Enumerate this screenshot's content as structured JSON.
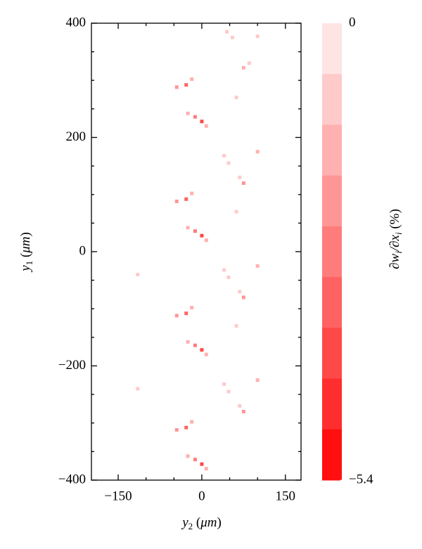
{
  "chart_data": {
    "type": "heatmap",
    "xlabel": [
      "y",
      "2",
      " (",
      "μm",
      ")"
    ],
    "ylabel": [
      "y",
      "1",
      " (",
      "μm",
      ")"
    ],
    "colorbar_label": [
      "∂w",
      "i",
      "/∂x",
      "i",
      " (%)"
    ],
    "xlim": [
      -198,
      178
    ],
    "ylim": [
      -400,
      400
    ],
    "xticks": [
      {
        "value": -150,
        "label": "−150"
      },
      0,
      150
    ],
    "yticks": [
      {
        "value": -400,
        "label": "−400"
      },
      {
        "value": -200,
        "label": "−200"
      },
      0,
      200,
      400
    ],
    "xminorticks": [
      -100,
      -50,
      50,
      100
    ],
    "yminorticks": [
      -350,
      -300,
      -250,
      -150,
      -100,
      -50,
      50,
      100,
      150,
      250,
      300,
      350
    ],
    "clim": [
      -5.4,
      0
    ],
    "cticks": [
      0,
      {
        "value": -5.4,
        "label": "−5.4"
      }
    ],
    "colors": [
      "#ffe4e4",
      "#ffcaca",
      "#ffb0b0",
      "#ff9696",
      "#ff7c7c",
      "#ff6262",
      "#ff4848",
      "#ff2e2e",
      "#ff0f0f"
    ],
    "points": {
      "x": [
        -28,
        -45,
        -18,
        0,
        -12,
        -25,
        8,
        40,
        48,
        75,
        68,
        100,
        62,
        75,
        85,
        -28,
        -45,
        -18,
        0,
        -12,
        -25,
        8,
        40,
        48,
        75,
        68,
        100,
        62,
        -28,
        -45,
        -18,
        0,
        -12,
        -25,
        8,
        40,
        48,
        75,
        68,
        100,
        62,
        -28,
        -45,
        -18,
        0,
        -12,
        -25,
        8,
        45,
        55,
        100,
        -115,
        -115
      ],
      "y": [
        292,
        288,
        302,
        228,
        236,
        242,
        220,
        168,
        155,
        120,
        130,
        175,
        270,
        322,
        330,
        92,
        88,
        102,
        28,
        36,
        42,
        20,
        -32,
        -45,
        -80,
        -70,
        -25,
        70,
        -108,
        -112,
        -98,
        -172,
        -164,
        -158,
        -180,
        -232,
        -245,
        -280,
        -270,
        -225,
        -130,
        -308,
        -312,
        -298,
        -372,
        -364,
        -358,
        -380,
        385,
        375,
        377,
        -40,
        -240
      ],
      "values": [
        -3.5,
        -2,
        -1.2,
        -4,
        -2.5,
        -1.2,
        -1.5,
        -0.9,
        -0.6,
        -1.8,
        -0.8,
        -1.2,
        -0.7,
        -1.5,
        -0.8,
        -3.5,
        -2,
        -1.2,
        -4,
        -2.5,
        -1.2,
        -1.5,
        -0.9,
        -0.6,
        -1.8,
        -0.8,
        -1.2,
        -0.7,
        -3.5,
        -2,
        -1.2,
        -4,
        -2.5,
        -1.2,
        -1.5,
        -0.9,
        -0.6,
        -1.8,
        -0.8,
        -1.2,
        -0.7,
        -3.5,
        -2,
        -1.2,
        -4,
        -2.5,
        -1.2,
        -1.5,
        -1,
        -0.8,
        -1,
        -0.8,
        -0.6
      ]
    }
  }
}
